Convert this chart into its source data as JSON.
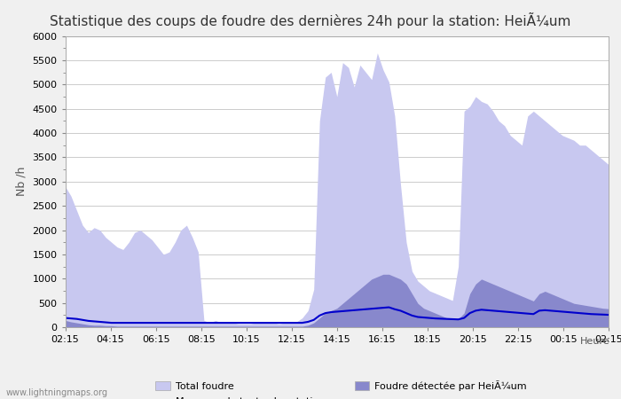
{
  "title": "Statistique des coups de foudre des dernières 24h pour la station: HeiÃ¼um",
  "ylabel": "Nb /h",
  "xlabel_right": "Heure",
  "watermark": "www.lightningmaps.org",
  "x_labels": [
    "02:15",
    "04:15",
    "06:15",
    "08:15",
    "10:15",
    "12:15",
    "14:15",
    "16:15",
    "18:15",
    "20:15",
    "22:15",
    "00:15",
    "02:15"
  ],
  "ylim": [
    0,
    6000
  ],
  "yticks": [
    0,
    500,
    1000,
    1500,
    2000,
    2500,
    3000,
    3500,
    4000,
    4500,
    5000,
    5500,
    6000
  ],
  "background_color": "#f0f0f0",
  "plot_bg_color": "#ffffff",
  "total_foudre_color": "#c8c8f0",
  "local_foudre_color": "#8888cc",
  "mean_line_color": "#0000cc",
  "grid_color": "#cccccc",
  "title_fontsize": 11,
  "total_foudre": [
    2900,
    2700,
    2400,
    2100,
    1950,
    2050,
    2000,
    1850,
    1750,
    1650,
    1600,
    1750,
    1950,
    2000,
    1900,
    1800,
    1650,
    1500,
    1550,
    1750,
    2000,
    2100,
    1850,
    1550,
    140,
    90,
    140,
    90,
    110,
    90,
    70,
    70,
    70,
    90,
    110,
    90,
    90,
    70,
    90,
    90,
    110,
    190,
    340,
    780,
    4250,
    5150,
    5250,
    4750,
    5450,
    5350,
    4950,
    5400,
    5250,
    5100,
    5650,
    5300,
    5050,
    4350,
    2950,
    1750,
    1150,
    950,
    850,
    750,
    700,
    650,
    600,
    550,
    1250,
    4450,
    4550,
    4750,
    4650,
    4600,
    4450,
    4250,
    4150,
    3950,
    3850,
    3750,
    4350,
    4450,
    4350,
    4250,
    4150,
    4050,
    3950,
    3900,
    3850,
    3750,
    3750,
    3650,
    3550,
    3450,
    3350,
    3250
  ],
  "local_foudre": [
    140,
    110,
    90,
    70,
    50,
    40,
    40,
    30,
    30,
    20,
    20,
    20,
    20,
    20,
    20,
    20,
    20,
    20,
    20,
    20,
    20,
    20,
    20,
    20,
    20,
    20,
    20,
    20,
    20,
    20,
    20,
    20,
    20,
    20,
    20,
    20,
    20,
    20,
    20,
    20,
    20,
    20,
    40,
    90,
    190,
    290,
    340,
    390,
    490,
    590,
    690,
    790,
    890,
    990,
    1040,
    1090,
    1090,
    1040,
    990,
    890,
    690,
    490,
    390,
    340,
    290,
    240,
    190,
    170,
    170,
    290,
    690,
    890,
    990,
    940,
    890,
    840,
    790,
    740,
    690,
    640,
    590,
    540,
    690,
    740,
    690,
    640,
    590,
    540,
    490,
    470,
    450,
    430,
    410,
    390,
    380
  ],
  "mean_line": [
    190,
    180,
    170,
    150,
    130,
    120,
    110,
    100,
    90,
    90,
    90,
    90,
    90,
    90,
    90,
    90,
    90,
    90,
    90,
    90,
    90,
    90,
    90,
    90,
    90,
    90,
    90,
    90,
    90,
    90,
    90,
    90,
    90,
    90,
    90,
    90,
    90,
    90,
    90,
    90,
    90,
    90,
    110,
    150,
    240,
    290,
    310,
    320,
    330,
    340,
    350,
    360,
    370,
    380,
    390,
    400,
    410,
    370,
    340,
    290,
    240,
    210,
    200,
    190,
    180,
    175,
    170,
    165,
    160,
    190,
    290,
    340,
    360,
    350,
    340,
    330,
    320,
    310,
    300,
    290,
    280,
    270,
    340,
    350,
    340,
    330,
    320,
    310,
    300,
    290,
    280,
    270,
    265,
    260,
    255,
    250,
    245
  ]
}
